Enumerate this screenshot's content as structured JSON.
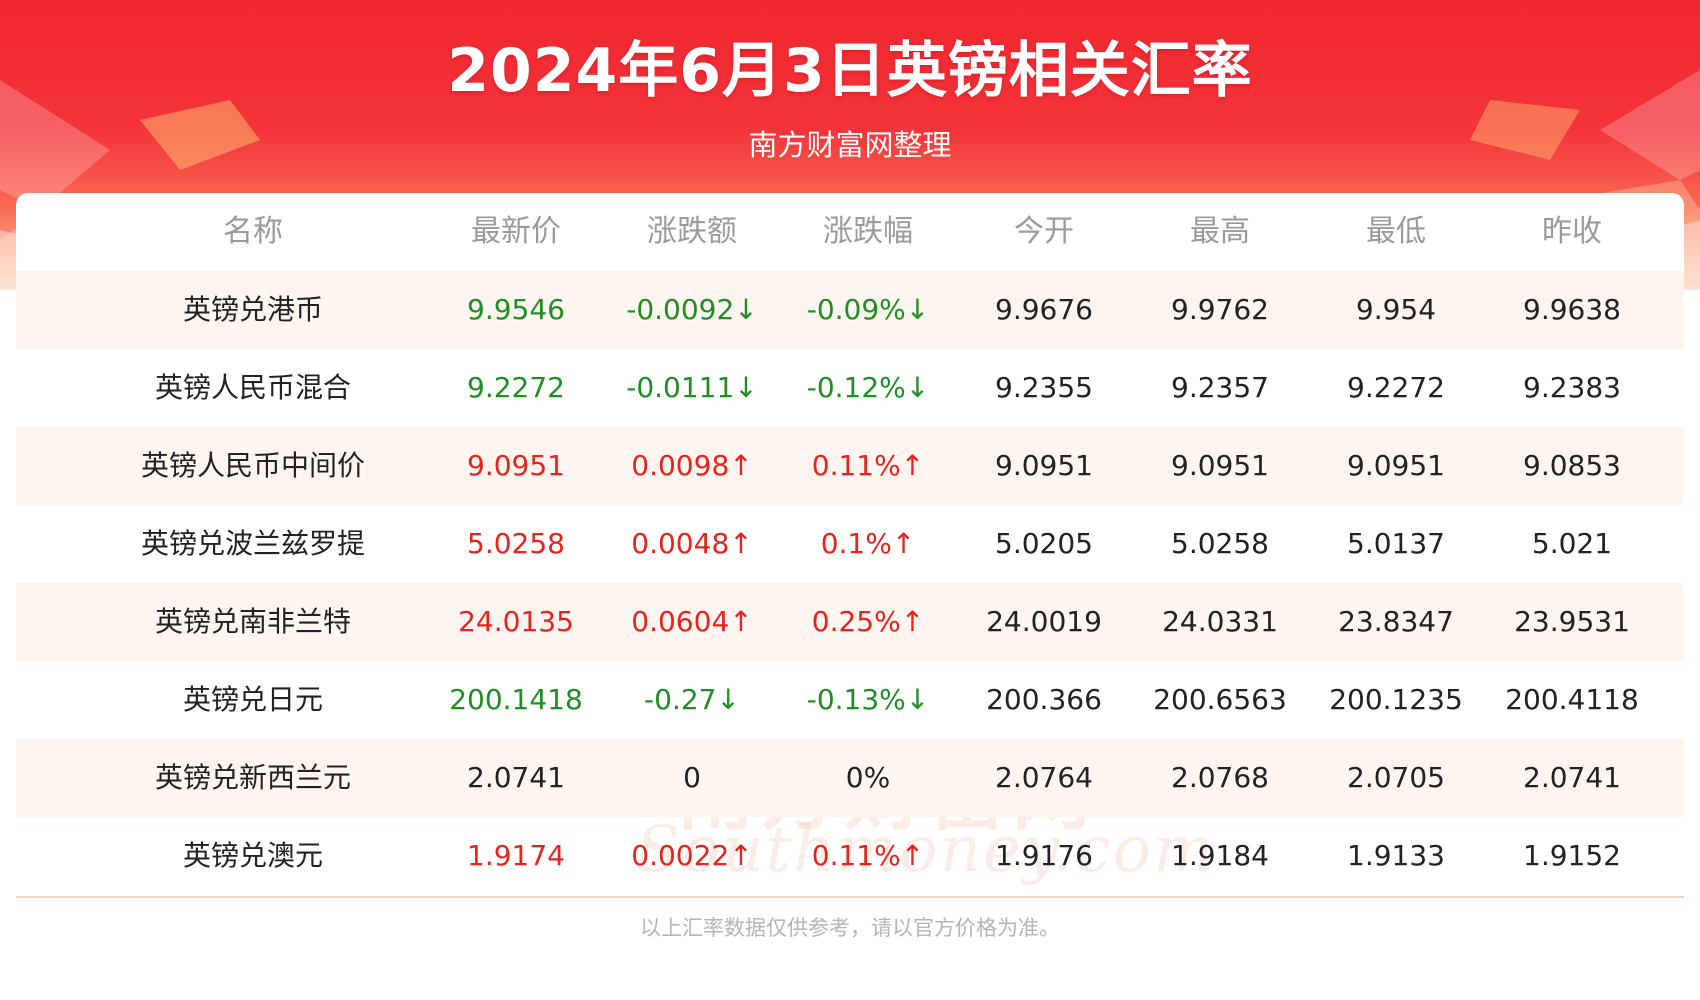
{
  "header": {
    "title": "2024年6月3日英镑相关汇率",
    "subtitle": "南方财富网整理"
  },
  "watermark": {
    "cn": "南方财富网",
    "en": "Southmoney.com"
  },
  "table": {
    "columns": [
      "名称",
      "最新价",
      "涨跌额",
      "涨跌幅",
      "今开",
      "最高",
      "最低",
      "昨收"
    ],
    "rows": [
      {
        "name": "英镑兑港币",
        "latest": "9.9546",
        "change": "-0.0092↓",
        "pct": "-0.09%↓",
        "open": "9.9676",
        "high": "9.9762",
        "low": "9.954",
        "prev": "9.9638",
        "trend": "down"
      },
      {
        "name": "英镑人民币混合",
        "latest": "9.2272",
        "change": "-0.0111↓",
        "pct": "-0.12%↓",
        "open": "9.2355",
        "high": "9.2357",
        "low": "9.2272",
        "prev": "9.2383",
        "trend": "down"
      },
      {
        "name": "英镑人民币中间价",
        "latest": "9.0951",
        "change": "0.0098↑",
        "pct": "0.11%↑",
        "open": "9.0951",
        "high": "9.0951",
        "low": "9.0951",
        "prev": "9.0853",
        "trend": "up"
      },
      {
        "name": "英镑兑波兰兹罗提",
        "latest": "5.0258",
        "change": "0.0048↑",
        "pct": "0.1%↑",
        "open": "5.0205",
        "high": "5.0258",
        "low": "5.0137",
        "prev": "5.021",
        "trend": "up"
      },
      {
        "name": "英镑兑南非兰特",
        "latest": "24.0135",
        "change": "0.0604↑",
        "pct": "0.25%↑",
        "open": "24.0019",
        "high": "24.0331",
        "low": "23.8347",
        "prev": "23.9531",
        "trend": "up"
      },
      {
        "name": "英镑兑日元",
        "latest": "200.1418",
        "change": "-0.27↓",
        "pct": "-0.13%↓",
        "open": "200.366",
        "high": "200.6563",
        "low": "200.1235",
        "prev": "200.4118",
        "trend": "down"
      },
      {
        "name": "英镑兑新西兰元",
        "latest": "2.0741",
        "change": "0",
        "pct": "0%",
        "open": "2.0764",
        "high": "2.0768",
        "low": "2.0705",
        "prev": "2.0741",
        "trend": "flat"
      },
      {
        "name": "英镑兑澳元",
        "latest": "1.9174",
        "change": "0.0022↑",
        "pct": "0.11%↑",
        "open": "1.9176",
        "high": "1.9184",
        "low": "1.9133",
        "prev": "1.9152",
        "trend": "up"
      }
    ]
  },
  "footer": {
    "note": "以上汇率数据仅供参考，请以官方价格为准。"
  },
  "colors": {
    "banner_red": "#f0262f",
    "up": "#e8231c",
    "down": "#1f8f23",
    "row_alt": "#fef5f0"
  }
}
